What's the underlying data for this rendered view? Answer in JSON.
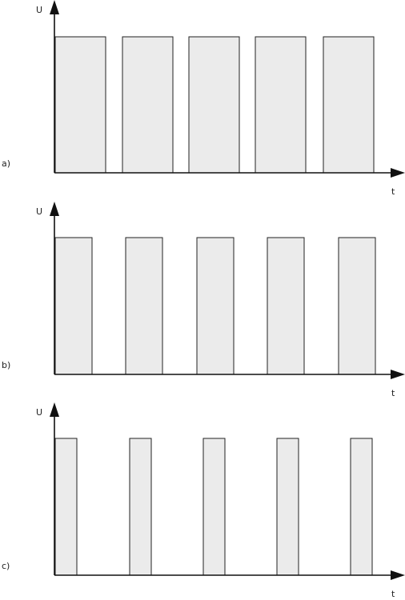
{
  "panels": [
    {
      "label": "a)",
      "y_axis": "U",
      "x_axis": "t"
    },
    {
      "label": "b)",
      "y_axis": "U",
      "x_axis": "t"
    },
    {
      "label": "c)",
      "y_axis": "U",
      "x_axis": "t"
    }
  ]
}
